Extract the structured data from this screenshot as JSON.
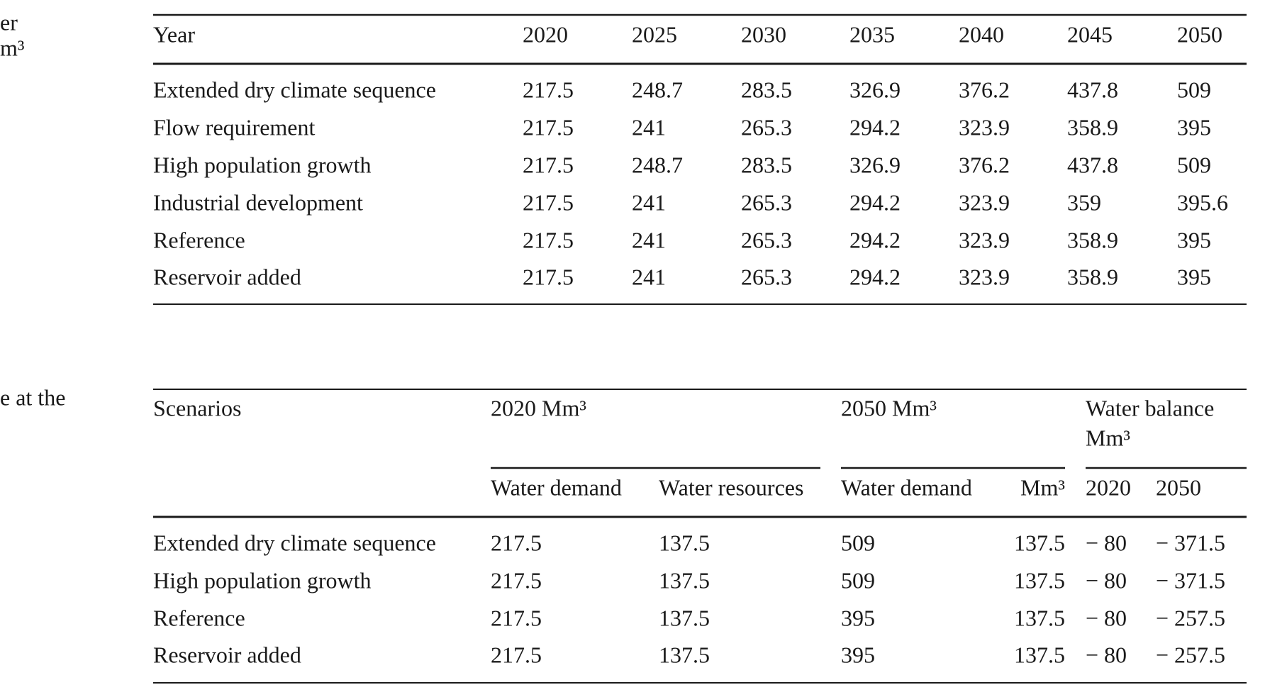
{
  "margin_fragments": [
    "er",
    "m³",
    "e at the"
  ],
  "table1": {
    "header": [
      "Year",
      "2020",
      "2025",
      "2030",
      "2035",
      "2040",
      "2045",
      "2050"
    ],
    "rows": [
      [
        "Extended dry climate sequence",
        "217.5",
        "248.7",
        "283.5",
        "326.9",
        "376.2",
        "437.8",
        "509"
      ],
      [
        "Flow requirement",
        "217.5",
        "241",
        "265.3",
        "294.2",
        "323.9",
        "358.9",
        "395"
      ],
      [
        "High population growth",
        "217.5",
        "248.7",
        "283.5",
        "326.9",
        "376.2",
        "437.8",
        "509"
      ],
      [
        "Industrial development",
        "217.5",
        "241",
        "265.3",
        "294.2",
        "323.9",
        "359",
        "395.6"
      ],
      [
        "Reference",
        "217.5",
        "241",
        "265.3",
        "294.2",
        "323.9",
        "358.9",
        "395"
      ],
      [
        "Reservoir added",
        "217.5",
        "241",
        "265.3",
        "294.2",
        "323.9",
        "358.9",
        "395"
      ]
    ]
  },
  "table2": {
    "groups": [
      "Scenarios",
      "2020 Mm³",
      "2050 Mm³",
      "Water balance",
      "Mm³"
    ],
    "subheader": [
      "Water demand",
      "Water resources",
      "Water demand",
      "Mm³",
      "2020",
      "2050"
    ],
    "rows": [
      [
        "Extended dry climate sequence",
        "217.5",
        "137.5",
        "509",
        "137.5",
        "− 80",
        "− 371.5"
      ],
      [
        "High population growth",
        "217.5",
        "137.5",
        "509",
        "137.5",
        "− 80",
        "− 371.5"
      ],
      [
        "Reference",
        "217.5",
        "137.5",
        "395",
        "137.5",
        "− 80",
        "− 257.5"
      ],
      [
        "Reservoir added",
        "217.5",
        "137.5",
        "395",
        "137.5",
        "− 80",
        "− 257.5"
      ]
    ]
  }
}
